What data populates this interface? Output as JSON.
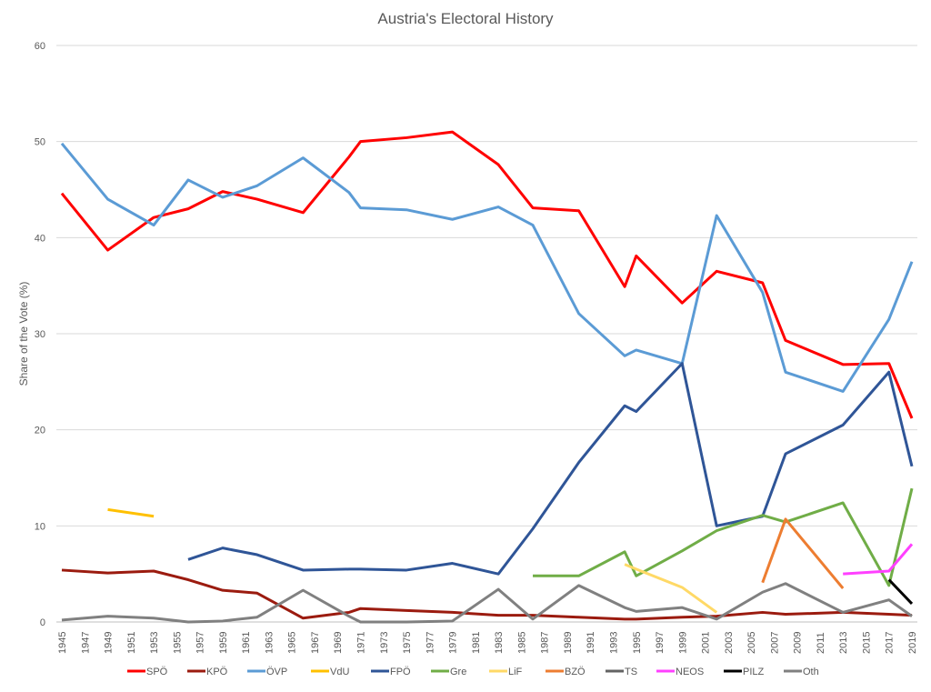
{
  "chart_data": {
    "type": "line",
    "title": "Austria's Electoral History",
    "ylabel": "Share of the Vote (%)",
    "xlabel": "",
    "ylim": [
      0,
      60
    ],
    "yticks": [
      0,
      10,
      20,
      30,
      40,
      50,
      60
    ],
    "xlim": [
      1945,
      2019
    ],
    "grid": true,
    "legend": "bottom",
    "series": [
      {
        "name": "SPÖ",
        "color": "#ff0000",
        "points": [
          [
            1945,
            44.6
          ],
          [
            1949,
            38.7
          ],
          [
            1953,
            42.1
          ],
          [
            1956,
            43.0
          ],
          [
            1959,
            44.8
          ],
          [
            1962,
            44.0
          ],
          [
            1966,
            42.6
          ],
          [
            1970,
            48.4
          ],
          [
            1971,
            50.0
          ],
          [
            1975,
            50.4
          ],
          [
            1979,
            51.0
          ],
          [
            1983,
            47.6
          ],
          [
            1986,
            43.1
          ],
          [
            1990,
            42.8
          ],
          [
            1994,
            34.9
          ],
          [
            1995,
            38.1
          ],
          [
            1999,
            33.2
          ],
          [
            2002,
            36.5
          ],
          [
            2006,
            35.3
          ],
          [
            2008,
            29.3
          ],
          [
            2013,
            26.8
          ],
          [
            2017,
            26.9
          ],
          [
            2019,
            21.2
          ]
        ]
      },
      {
        "name": "KPÖ",
        "color": "#9b1b0f",
        "points": [
          [
            1945,
            5.4
          ],
          [
            1949,
            5.1
          ],
          [
            1953,
            5.3
          ],
          [
            1956,
            4.4
          ],
          [
            1959,
            3.3
          ],
          [
            1962,
            3.0
          ],
          [
            1966,
            0.4
          ],
          [
            1970,
            1.0
          ],
          [
            1971,
            1.4
          ],
          [
            1975,
            1.2
          ],
          [
            1979,
            1.0
          ],
          [
            1983,
            0.7
          ],
          [
            1986,
            0.7
          ],
          [
            1990,
            0.5
          ],
          [
            1994,
            0.3
          ],
          [
            1995,
            0.3
          ],
          [
            1999,
            0.5
          ],
          [
            2002,
            0.6
          ],
          [
            2006,
            1.0
          ],
          [
            2008,
            0.8
          ],
          [
            2013,
            1.0
          ],
          [
            2017,
            0.8
          ],
          [
            2019,
            0.7
          ]
        ]
      },
      {
        "name": "ÖVP",
        "color": "#5b9bd5",
        "points": [
          [
            1945,
            49.8
          ],
          [
            1949,
            44.0
          ],
          [
            1953,
            41.3
          ],
          [
            1956,
            46.0
          ],
          [
            1959,
            44.2
          ],
          [
            1962,
            45.4
          ],
          [
            1966,
            48.3
          ],
          [
            1970,
            44.7
          ],
          [
            1971,
            43.1
          ],
          [
            1975,
            42.9
          ],
          [
            1979,
            41.9
          ],
          [
            1983,
            43.2
          ],
          [
            1986,
            41.3
          ],
          [
            1990,
            32.1
          ],
          [
            1994,
            27.7
          ],
          [
            1995,
            28.3
          ],
          [
            1999,
            26.9
          ],
          [
            2002,
            42.3
          ],
          [
            2006,
            34.3
          ],
          [
            2008,
            26.0
          ],
          [
            2013,
            24.0
          ],
          [
            2017,
            31.5
          ],
          [
            2019,
            37.5
          ]
        ]
      },
      {
        "name": "VdU",
        "color": "#ffc000",
        "points": [
          [
            1949,
            11.7
          ],
          [
            1953,
            11.0
          ]
        ]
      },
      {
        "name": "FPÖ",
        "color": "#2f5597",
        "points": [
          [
            1956,
            6.5
          ],
          [
            1959,
            7.7
          ],
          [
            1962,
            7.0
          ],
          [
            1966,
            5.4
          ],
          [
            1970,
            5.5
          ],
          [
            1971,
            5.5
          ],
          [
            1975,
            5.4
          ],
          [
            1979,
            6.1
          ],
          [
            1983,
            5.0
          ],
          [
            1986,
            9.7
          ],
          [
            1990,
            16.6
          ],
          [
            1994,
            22.5
          ],
          [
            1995,
            21.9
          ],
          [
            1999,
            26.9
          ],
          [
            2002,
            10.0
          ],
          [
            2006,
            11.0
          ],
          [
            2008,
            17.5
          ],
          [
            2013,
            20.5
          ],
          [
            2017,
            26.0
          ],
          [
            2019,
            16.2
          ]
        ]
      },
      {
        "name": "Gre",
        "color": "#70ad47",
        "points": [
          [
            1986,
            4.8
          ],
          [
            1990,
            4.8
          ],
          [
            1994,
            7.3
          ],
          [
            1995,
            4.8
          ],
          [
            1999,
            7.4
          ],
          [
            2002,
            9.5
          ],
          [
            2006,
            11.1
          ],
          [
            2008,
            10.4
          ],
          [
            2013,
            12.4
          ],
          [
            2017,
            3.8
          ],
          [
            2019,
            13.9
          ]
        ]
      },
      {
        "name": "LiF",
        "color": "#ffd966",
        "points": [
          [
            1994,
            6.0
          ],
          [
            1995,
            5.5
          ],
          [
            1999,
            3.6
          ],
          [
            2002,
            1.0
          ]
        ]
      },
      {
        "name": "BZÖ",
        "color": "#ed7d31",
        "points": [
          [
            2006,
            4.1
          ],
          [
            2008,
            10.7
          ],
          [
            2013,
            3.5
          ]
        ]
      },
      {
        "name": "TS",
        "color": "#636363",
        "points": []
      },
      {
        "name": "NEOS",
        "color": "#ff40ff",
        "points": [
          [
            2013,
            5.0
          ],
          [
            2017,
            5.3
          ],
          [
            2019,
            8.1
          ]
        ]
      },
      {
        "name": "PILZ",
        "color": "#000000",
        "points": [
          [
            2017,
            4.4
          ],
          [
            2019,
            1.9
          ]
        ]
      },
      {
        "name": "Oth",
        "color": "#808080",
        "points": [
          [
            1945,
            0.2
          ],
          [
            1949,
            0.6
          ],
          [
            1953,
            0.4
          ],
          [
            1956,
            0.0
          ],
          [
            1959,
            0.1
          ],
          [
            1962,
            0.5
          ],
          [
            1966,
            3.3
          ],
          [
            1970,
            0.6
          ],
          [
            1971,
            0.0
          ],
          [
            1975,
            0.0
          ],
          [
            1979,
            0.1
          ],
          [
            1983,
            3.4
          ],
          [
            1986,
            0.3
          ],
          [
            1990,
            3.8
          ],
          [
            1994,
            1.5
          ],
          [
            1995,
            1.1
          ],
          [
            1999,
            1.5
          ],
          [
            2002,
            0.3
          ],
          [
            2006,
            3.1
          ],
          [
            2008,
            4.0
          ],
          [
            2013,
            1.0
          ],
          [
            2017,
            2.3
          ],
          [
            2019,
            0.6
          ]
        ]
      }
    ]
  }
}
